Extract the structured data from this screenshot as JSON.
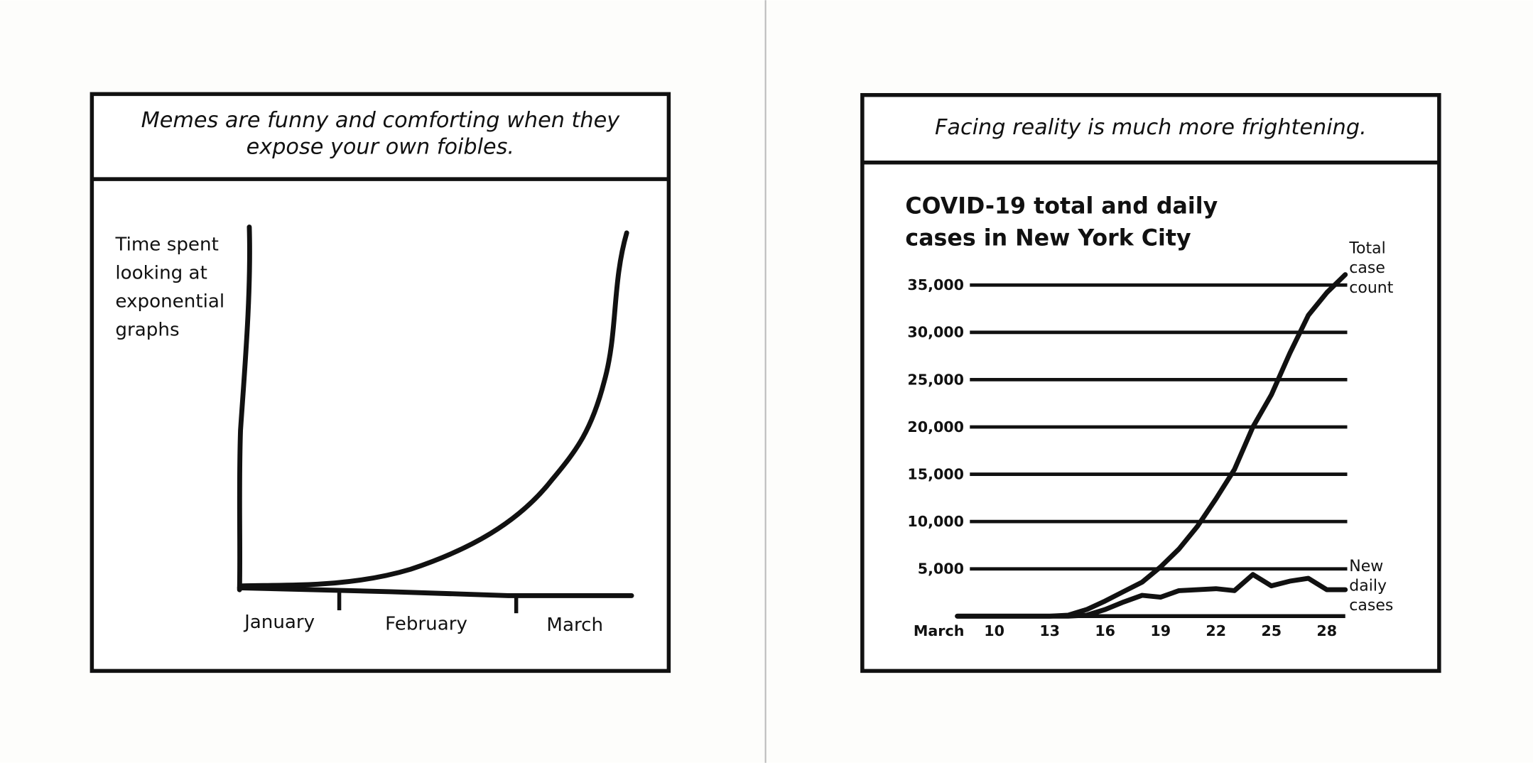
{
  "left_panel": {
    "caption": "Memes are funny and comforting when they expose your own foibles.",
    "y_label": "Time spent looking at exponential graphs",
    "x_labels": [
      "January",
      "February",
      "March"
    ]
  },
  "right_panel": {
    "caption": "Facing reality is much more frightening."
  },
  "chart_data": {
    "type": "line",
    "title": "COVID-19 total and daily cases in New York City",
    "x": [
      8,
      9,
      10,
      11,
      12,
      13,
      14,
      15,
      16,
      17,
      18,
      19,
      20,
      21,
      22,
      23,
      24,
      25,
      26,
      27,
      28,
      29
    ],
    "series": [
      {
        "name": "Total case count",
        "color": "#111111",
        "values": [
          0,
          0,
          0,
          0,
          0,
          0,
          100,
          700,
          1600,
          2600,
          3600,
          5200,
          7100,
          9500,
          12400,
          15500,
          20000,
          23400,
          27800,
          31800,
          34200,
          36100
        ]
      },
      {
        "name": "New daily cases",
        "color": "#111111",
        "values": [
          0,
          0,
          0,
          0,
          0,
          0,
          0,
          100,
          700,
          1500,
          2200,
          2000,
          2700,
          2800,
          2900,
          2700,
          4400,
          3200,
          3700,
          4000,
          2800,
          2800
        ]
      }
    ],
    "xlim": [
      7,
      29
    ],
    "xticks": [
      {
        "value": 7,
        "label": "March"
      },
      10,
      13,
      16,
      19,
      22,
      25,
      28
    ],
    "ylim": [
      0,
      37000
    ],
    "yticks": [
      {
        "value": 5000,
        "label": "5,000"
      },
      {
        "value": 10000,
        "label": "10,000"
      },
      {
        "value": 15000,
        "label": "15,000"
      },
      {
        "value": 20000,
        "label": "20,000"
      },
      {
        "value": 25000,
        "label": "25,000"
      },
      {
        "value": 30000,
        "label": "30,000"
      },
      {
        "value": 35000,
        "label": "35,000"
      }
    ],
    "grid": true
  }
}
